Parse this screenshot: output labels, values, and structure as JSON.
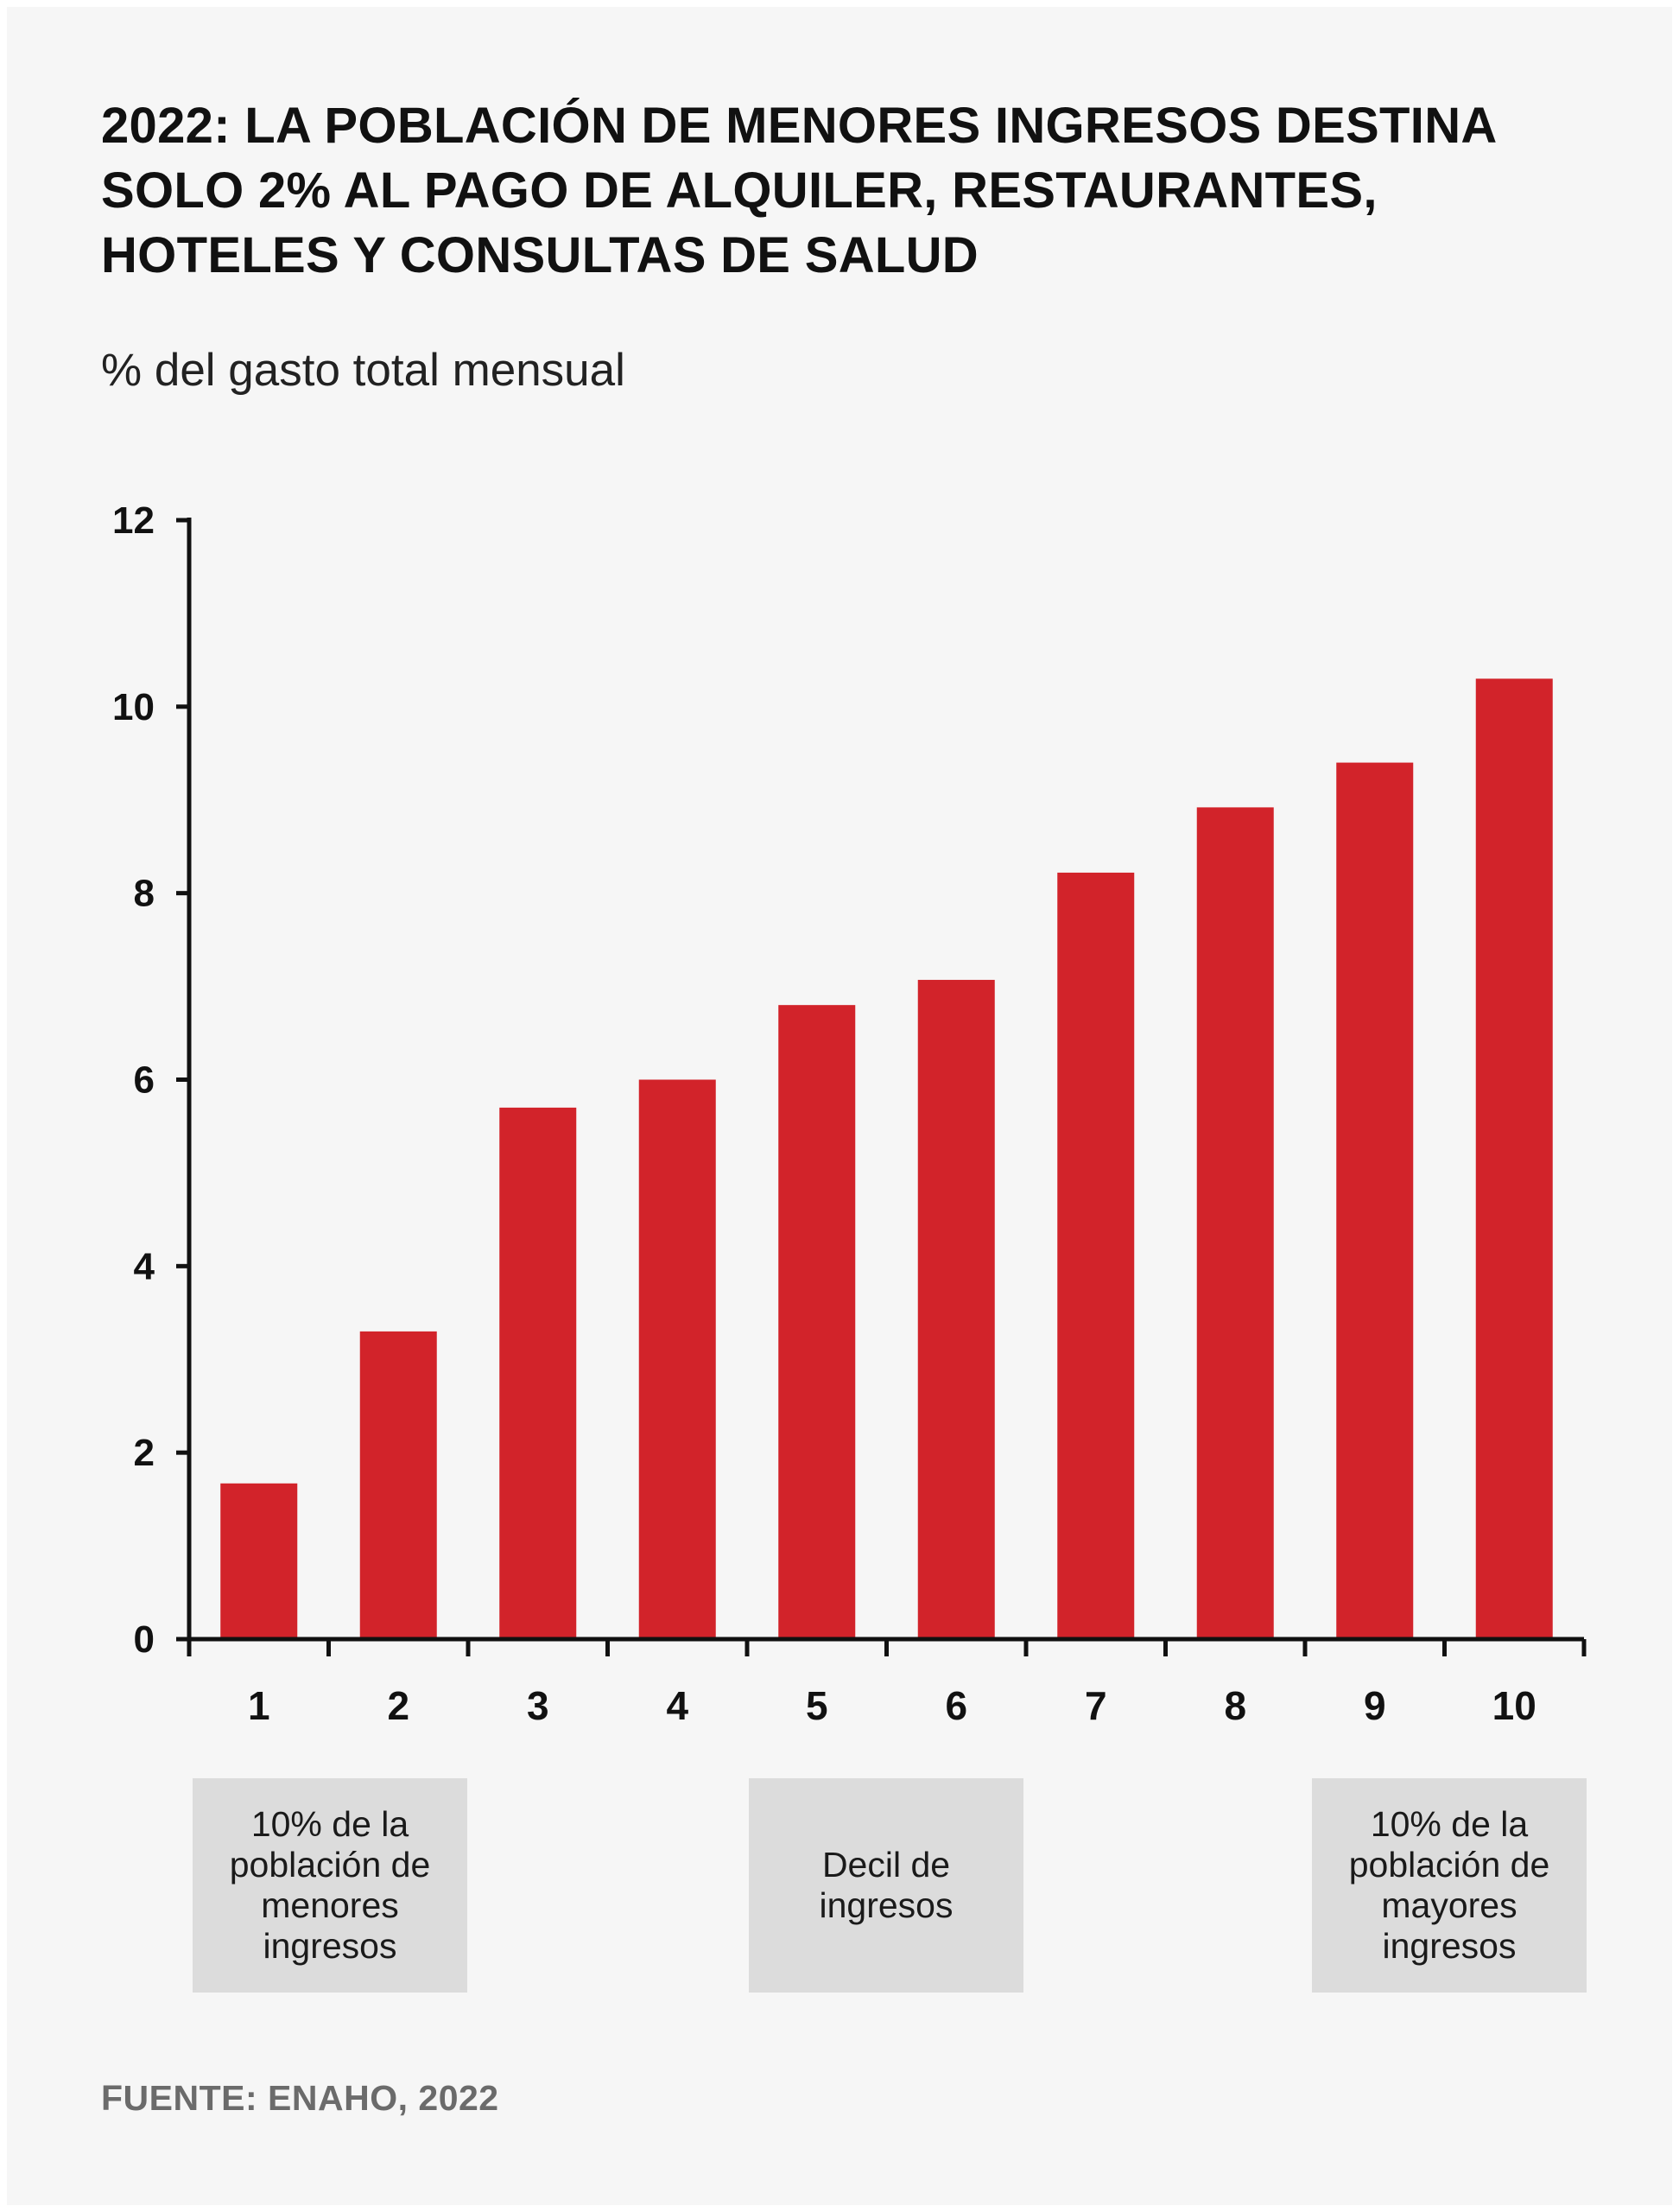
{
  "header": {
    "title": "2022: La población de menores ingresos destina solo 2% al pago de alquiler, restaurantes, hoteles y consultas de salud",
    "subtitle": "% del gasto total mensual"
  },
  "annotations": {
    "low": "10% de la población de menores ingresos",
    "middle": "Decil de ingresos",
    "high": "10% de la población de mayores ingresos"
  },
  "footer": {
    "source": "FUENTE: ENAHO, 2022"
  },
  "colors": {
    "bar": "#d2232a",
    "axis": "#111111",
    "box": "#dcdcdc",
    "background": "#f6f6f6"
  },
  "chart_data": {
    "type": "bar",
    "categories": [
      "1",
      "2",
      "3",
      "4",
      "5",
      "6",
      "7",
      "8",
      "9",
      "10"
    ],
    "values": [
      1.67,
      3.3,
      5.7,
      6.0,
      6.8,
      7.07,
      8.22,
      8.92,
      9.4,
      10.3
    ],
    "ylabel": "% del gasto total mensual",
    "ylim": [
      0,
      12
    ],
    "yticks": [
      0,
      2,
      4,
      6,
      8,
      10,
      12
    ],
    "grid": false,
    "legend": "none"
  }
}
